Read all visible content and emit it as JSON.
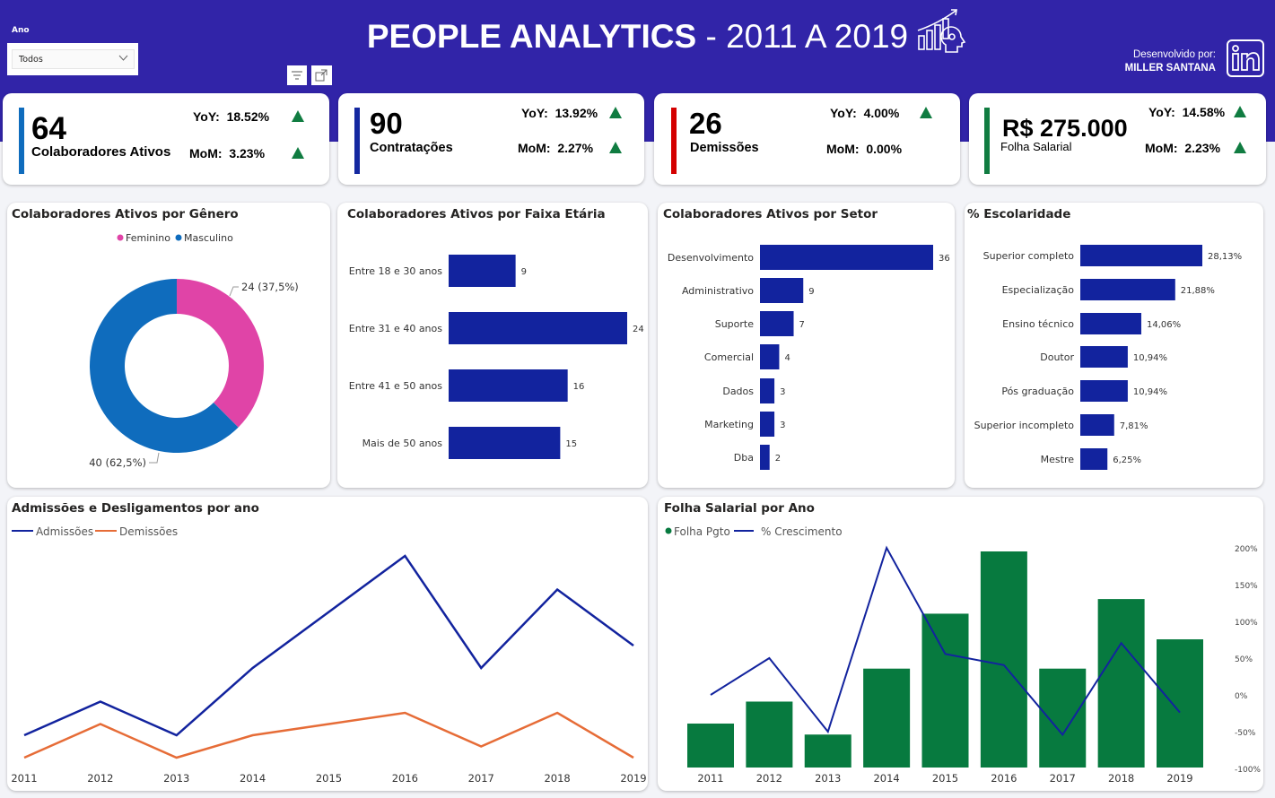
{
  "header": {
    "title_bold": "PEOPLE ANALYTICS",
    "title_rest": " - 2011 A 2019",
    "developed_by_label": "Desenvolvido por:",
    "developer_name": "MILLER SANTANA",
    "background_color": "#3124A8"
  },
  "filter": {
    "label": "Ano",
    "selected": "Todos"
  },
  "kpis": [
    {
      "value": "64",
      "label": "Colaboradores Ativos",
      "yoy_label": "YoY:",
      "yoy": "18.52%",
      "mom_label": "MoM:",
      "mom": "3.23%",
      "accent": "#0F6CBD",
      "yoy_up": true,
      "mom_up": true
    },
    {
      "value": "90",
      "label": "Contratações",
      "yoy_label": "YoY:",
      "yoy": "13.92%",
      "mom_label": "MoM:",
      "mom": "2.27%",
      "accent": "#1428A0",
      "yoy_up": true,
      "mom_up": true
    },
    {
      "value": "26",
      "label": "Demissões",
      "yoy_label": "YoY:",
      "yoy": "4.00%",
      "mom_label": "MoM:",
      "mom": "0.00%",
      "accent": "#D40000",
      "yoy_up": true,
      "mom_up": false
    },
    {
      "value": "R$ 275.000",
      "label": "Folha Salarial",
      "yoy_label": "YoY:",
      "yoy": "14.58%",
      "mom_label": "MoM:",
      "mom": "2.23%",
      "accent": "#107C41",
      "yoy_up": true,
      "mom_up": true
    }
  ],
  "chart_data": [
    {
      "type": "pie",
      "title": "Colaboradores Ativos por Gênero",
      "legend_position": "top",
      "categories": [
        "Feminino",
        "Masculino"
      ],
      "values": [
        24,
        40
      ],
      "data_labels": [
        "24 (37,5%)",
        "40 (62,5%)"
      ],
      "colors": [
        "#E044A7",
        "#0F6CBD"
      ],
      "donut": true
    },
    {
      "type": "bar",
      "orientation": "horizontal",
      "title": "Colaboradores Ativos por Faixa Etária",
      "categories": [
        "Entre 18 e 30 anos",
        "Entre 31 e 40 anos",
        "Entre 41 e 50 anos",
        "Mais de 50 anos"
      ],
      "values": [
        9,
        24,
        16,
        15
      ],
      "data_labels": [
        "9",
        "24",
        "16",
        "15"
      ],
      "color": "#12239E"
    },
    {
      "type": "bar",
      "orientation": "horizontal",
      "title": "Colaboradores Ativos por Setor",
      "categories": [
        "Desenvolvimento",
        "Administrativo",
        "Suporte",
        "Comercial",
        "Dados",
        "Marketing",
        "Dba"
      ],
      "values": [
        36,
        9,
        7,
        4,
        3,
        3,
        2
      ],
      "data_labels": [
        "36",
        "9",
        "7",
        "4",
        "3",
        "3",
        "2"
      ],
      "color": "#12239E"
    },
    {
      "type": "bar",
      "orientation": "horizontal",
      "title": "% Escolaridade",
      "categories": [
        "Superior completo",
        "Especialização",
        "Ensino técnico",
        "Doutor",
        "Pós graduação",
        "Superior incompleto",
        "Mestre"
      ],
      "values": [
        28.13,
        21.88,
        14.06,
        10.94,
        10.94,
        7.81,
        6.25
      ],
      "data_labels": [
        "28,13%",
        "21,88%",
        "14,06%",
        "10,94%",
        "10,94%",
        "7,81%",
        "6,25%"
      ],
      "color": "#12239E"
    },
    {
      "type": "line",
      "title": "Admissões e Desligamentos por ano",
      "legend_position": "top-left",
      "x": [
        "2011",
        "2012",
        "2013",
        "2014",
        "2015",
        "2016",
        "2017",
        "2018",
        "2019"
      ],
      "series": [
        {
          "name": "Admissões",
          "values": [
            3,
            6,
            3,
            9,
            14,
            19,
            9,
            16,
            11
          ],
          "color": "#12239E"
        },
        {
          "name": "Demissões",
          "values": [
            1,
            4,
            1,
            3,
            4,
            5,
            2,
            5,
            1
          ],
          "color": "#E66C37"
        }
      ],
      "ylim": [
        0,
        21
      ]
    },
    {
      "type": "bar",
      "combo": "bar+line",
      "title": "Folha Salarial por Ano",
      "legend_position": "top-left",
      "x": [
        "2011",
        "2012",
        "2013",
        "2014",
        "2015",
        "2016",
        "2017",
        "2018",
        "2019"
      ],
      "series": [
        {
          "name": "Folha Pgto",
          "type": "bar",
          "values": [
            12000,
            18000,
            9000,
            27000,
            42000,
            59000,
            27000,
            46000,
            35000
          ],
          "color": "#077A3F"
        },
        {
          "name": "% Crescimento",
          "type": "line",
          "axis": "right",
          "values": [
            0,
            50,
            -50,
            200,
            55.6,
            40.5,
            -54.2,
            70.4,
            -23.9
          ],
          "color": "#12239E"
        }
      ],
      "right_axis": {
        "ticks": [
          "200%",
          "150%",
          "100%",
          "50%",
          "0%",
          "-50%",
          "-100%"
        ],
        "ylim": [
          -100,
          200
        ]
      }
    }
  ]
}
